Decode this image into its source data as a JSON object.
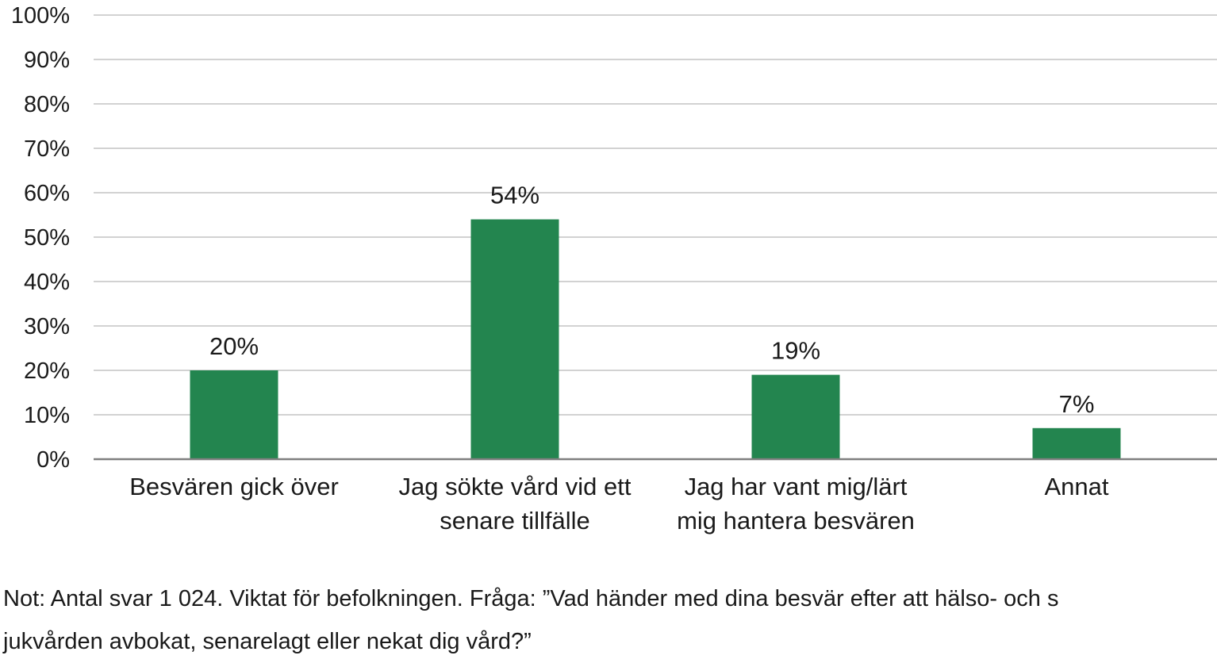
{
  "chart_data": {
    "type": "bar",
    "categories": [
      [
        "Besvären gick över"
      ],
      [
        "Jag sökte vård vid ett",
        "senare tillfälle"
      ],
      [
        "Jag har vant mig/lärt",
        "mig hantera besvären"
      ],
      [
        "Annat"
      ]
    ],
    "values": [
      20,
      54,
      19,
      7
    ],
    "data_labels": [
      "20%",
      "54%",
      "19%",
      "7%"
    ],
    "y_ticks": [
      "0%",
      "10%",
      "20%",
      "30%",
      "40%",
      "50%",
      "60%",
      "70%",
      "80%",
      "90%",
      "100%"
    ],
    "ylim": [
      0,
      100
    ],
    "grid": true,
    "bar_color": "#23854f",
    "grid_color": "#b8b8b8",
    "axis_color": "#7f7f7f"
  },
  "note": {
    "line1": "Not: Antal svar 1 024. Viktat för befolkningen. Fråga: ”Vad händer med dina besvär efter att hälso- och s",
    "line2": "jukvården avbokat, senarelagt eller nekat dig vård?”"
  }
}
